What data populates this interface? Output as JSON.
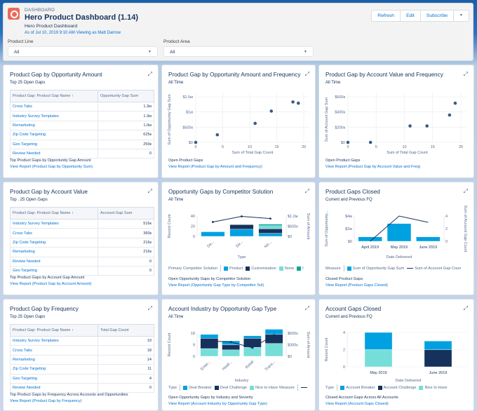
{
  "header": {
    "eyebrow": "DASHBOARD",
    "title": "Hero Product Dashboard (1.14)",
    "subtitle": "Hero Product Dashboard",
    "as_of": "As of Jul 10, 2019 9:10 AM·Viewing as Matt Darrow",
    "buttons": {
      "refresh": "Refresh",
      "edit": "Edit",
      "subscribe": "Subscribe",
      "more": "▼"
    },
    "filters": [
      {
        "label": "Product Line",
        "value": "All"
      },
      {
        "label": "Product Area",
        "value": "All"
      }
    ],
    "accent": "#ea6a5a"
  },
  "colors": {
    "blue": "#00a1e0",
    "navy": "#16325c",
    "teal": "#76ded9",
    "darkteal": "#08a69a",
    "point": "#3c5a87"
  },
  "cards": {
    "c1": {
      "title": "Product Gap by Opportunity Amount",
      "subtitle": "Top 25 Open Gaps",
      "columns": [
        "Product Gap: Product Gap Name ↑",
        "Opportunity Gap Sum"
      ],
      "rows": [
        [
          "Cross Tabs",
          "1.3м"
        ],
        [
          "Industry Survey Templates",
          "1.3м"
        ],
        [
          "Remarketing",
          "1.0м"
        ],
        [
          "Zip Code Targeting",
          "625к"
        ],
        [
          "Geo Targeting",
          "250к"
        ],
        [
          "Review Needed",
          "0"
        ]
      ],
      "footer": "Top Product Gaps by Opportunity Gap Amount",
      "link": "View Report (Product Gap by Opportunity Sum)"
    },
    "c2": {
      "title": "Product Gap by Opportunity Amount and Frequency",
      "subtitle": "All Time",
      "footer": "Open Product Gaps",
      "link": "View Report (Product Gap by Amount and Frequency)"
    },
    "c3": {
      "title": "Product Gap by Account Value and Frequency",
      "subtitle": "All Time",
      "footer": "Open Product Gaps",
      "link": "View Report (Product Gap by Account Value and Freq)"
    },
    "c4": {
      "title": "Product Gap by Account Value",
      "subtitle": "Top . 25 Open Gaps",
      "columns": [
        "Product Gap: Product Gap Name ↑",
        "Account Gap Sum"
      ],
      "rows": [
        [
          "Industry Survey Templates",
          "516к"
        ],
        [
          "Cross Tabs",
          "360к"
        ],
        [
          "Zip Code Targeting",
          "216к"
        ],
        [
          "Remarketing",
          "216к"
        ],
        [
          "Review Needed",
          "0"
        ],
        [
          "Geo Targeting",
          "0"
        ]
      ],
      "footer": "Top Product Gaps by Account Gap Amount",
      "link": "View Report (Product Gap by Account Amount)"
    },
    "c5": {
      "title": "Opportunity Gaps by Competitor Solution",
      "subtitle": "All Time",
      "legend_title": "Primary Competitor Solution",
      "legend": [
        "Product",
        "Customization",
        "None",
        "I"
      ],
      "footer": "Open Opportunity Gaps by Competitor Solution",
      "link": "View Report (Opportunity Gap Type by Competitor Sol)"
    },
    "c6": {
      "title": "Product Gaps Closed",
      "subtitle": "Current and Previous FQ",
      "legend_title": "Measure",
      "legend": [
        "Sum of Opportunity Gap Sum",
        "Sum of Account Gap Coun"
      ],
      "footer": "Closed Product Gaps",
      "link": "View Report (Product Gaps Closed)"
    },
    "c7": {
      "title": "Product Gap by Frequency",
      "subtitle": "Top 25 Open Gaps",
      "columns": [
        "Product Gap: Product Gap Name ↑",
        "Total Gap Count"
      ],
      "rows": [
        [
          "Industry Survey Templates",
          "19"
        ],
        [
          "Cross Tabs",
          "18"
        ],
        [
          "Remarketing",
          "14"
        ],
        [
          "Zip Code Targeting",
          "11"
        ],
        [
          "Geo Targeting",
          "4"
        ],
        [
          "Review Needed",
          "0"
        ]
      ],
      "footer": "Top Product Gaps by Frequency Across Accounts and Opportunities",
      "link": "View Report (Product Gap by Frequency)"
    },
    "c8": {
      "title": "Account Industry by Opportunity Gap Type",
      "subtitle": "All Time",
      "legend_title": "Type",
      "legend": [
        "Deal Breaker",
        "Deal Challenge",
        "Nice to Have"
      ],
      "legend2_title": "Measure",
      "footer": "Open Opportunity Gaps by Industry and Severity",
      "link": "View Report (Account Industry by Opportunity Gap Type)"
    },
    "c9": {
      "title": "Account Gaps Closed",
      "subtitle": "Current and Previous FQ",
      "legend_title": "Type",
      "legend": [
        "Account Breaker",
        "Account Challenge",
        "Nice to Have"
      ],
      "footer": "Closed Account Gaps Across All Accounts",
      "link": "View Report (Account Gaps Closed)"
    }
  },
  "chart_data": [
    {
      "id": "c2",
      "type": "scatter",
      "xlabel": "Sum of Total Gap Count",
      "ylabel": "Sum of Opportunity Gap Sum",
      "xlim": [
        0,
        20
      ],
      "ylim": [
        0,
        1500000
      ],
      "xticks": [
        "0",
        "5",
        "10",
        "15",
        "20"
      ],
      "yticks": [
        "$0",
        "$500к",
        "$1м",
        "$1.5м"
      ],
      "points": [
        [
          0,
          0
        ],
        [
          4,
          250000
        ],
        [
          11,
          625000
        ],
        [
          14,
          1030000
        ],
        [
          18,
          1330000
        ],
        [
          19,
          1290000
        ]
      ]
    },
    {
      "id": "c3",
      "type": "scatter",
      "xlabel": "Sum of Total Gap Count",
      "ylabel": "Sum of Account Gap Sum",
      "xlim": [
        0,
        20
      ],
      "ylim": [
        0,
        600000
      ],
      "xticks": [
        "0",
        "5",
        "10",
        "15",
        "20"
      ],
      "yticks": [
        "$0",
        "$200к",
        "$400к",
        "$600к"
      ],
      "points": [
        [
          0,
          0
        ],
        [
          4,
          0
        ],
        [
          11,
          216000
        ],
        [
          14,
          216000
        ],
        [
          18,
          360000
        ],
        [
          19,
          516000
        ]
      ]
    },
    {
      "id": "c5",
      "type": "bar",
      "xlabel": "Type",
      "ylabel": "Record Count",
      "y2label": "Sum of Amount",
      "categories": [
        "De...",
        "De...",
        "Nic..."
      ],
      "ylim": [
        0,
        40
      ],
      "yticks": [
        "0",
        "20",
        "40"
      ],
      "y2ticks": [
        "$0",
        "$600к",
        "$1.2м"
      ],
      "series": [
        {
          "name": "Product",
          "values": [
            9,
            14,
            6
          ]
        },
        {
          "name": "Customization",
          "values": [
            0,
            9,
            9
          ]
        },
        {
          "name": "None",
          "values": [
            0,
            0,
            6
          ]
        },
        {
          "name": "I",
          "values": [
            0,
            0,
            3
          ]
        }
      ],
      "line": {
        "name": "Sum of Amount",
        "values": [
          850000,
          1180000,
          1050000
        ],
        "y2lim": [
          0,
          1200000
        ]
      }
    },
    {
      "id": "c6",
      "type": "bar",
      "xlabel": "Date Delivered",
      "ylabel": "Sum of Opportunity...",
      "y2label": "Sum of Account Gap Count",
      "categories": [
        "April 2019",
        "May 2019",
        "June 2019"
      ],
      "ylim": [
        0,
        4000000
      ],
      "yticks": [
        "$0",
        "$2м",
        "$4м"
      ],
      "y2ticks": [
        "0",
        "2",
        "4"
      ],
      "series": [
        {
          "name": "Sum of Opportunity Gap Sum",
          "values": [
            700000,
            2800000,
            700000
          ]
        }
      ],
      "line": {
        "name": "Sum of Account Gap Count",
        "values": [
          0,
          4,
          3
        ],
        "y2lim": [
          0,
          4
        ]
      }
    },
    {
      "id": "c8",
      "type": "bar",
      "xlabel": "Industry",
      "ylabel": "Record Count",
      "y2label": "Sum of Amount",
      "categories": [
        "Enter...",
        "Healt...",
        "Retail",
        "Trans..."
      ],
      "ylim": [
        0,
        18
      ],
      "yticks": [
        "0",
        "9",
        "18"
      ],
      "y2ticks": [
        "$0",
        "$300к",
        "$600к"
      ],
      "series": [
        {
          "name": "Nice to Have",
          "values": [
            6,
            5,
            7,
            10
          ]
        },
        {
          "name": "Deal Challenge",
          "values": [
            8,
            4,
            7,
            7
          ]
        },
        {
          "name": "Deal Breaker",
          "values": [
            3,
            3,
            2,
            4
          ]
        }
      ],
      "line": {
        "name": "Measure",
        "values": [
          400000,
          370000,
          220000,
          550000
        ],
        "y2lim": [
          0,
          600000
        ]
      }
    },
    {
      "id": "c9",
      "type": "bar",
      "xlabel": "Date Delivered",
      "ylabel": "Record Count",
      "categories": [
        "May 2019",
        "June 2019"
      ],
      "ylim": [
        0,
        4
      ],
      "yticks": [
        "0",
        "2",
        "4"
      ],
      "series": [
        {
          "name": "Nice to Have",
          "values": [
            2,
            0
          ]
        },
        {
          "name": "Account Challenge",
          "values": [
            0,
            2
          ]
        },
        {
          "name": "Account Breaker",
          "values": [
            2,
            1
          ]
        }
      ]
    }
  ]
}
